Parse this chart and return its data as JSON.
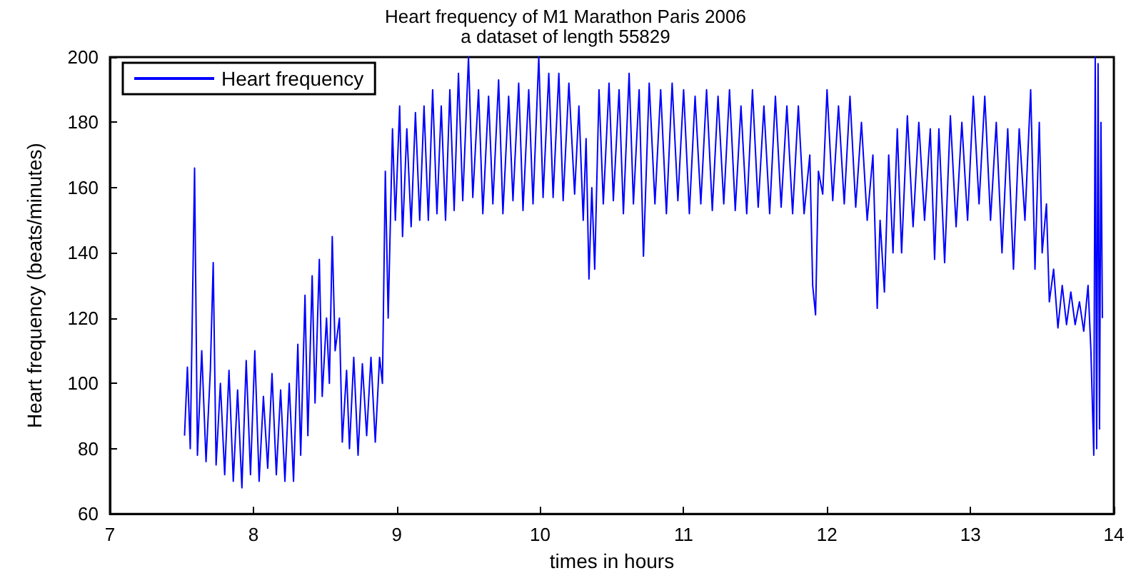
{
  "chart_data": {
    "type": "line",
    "title": "Heart frequency of M1 Marathon Paris 2006",
    "subtitle": "a dataset of length 55829",
    "xlabel": "times in hours",
    "ylabel": "Heart frequency (beats/minutes)",
    "xlim": [
      7,
      14
    ],
    "xticks": [
      7,
      8,
      9,
      10,
      11,
      12,
      13,
      14
    ],
    "ylim": [
      60,
      200
    ],
    "yticks": [
      60,
      80,
      100,
      120,
      140,
      160,
      180,
      200
    ],
    "grid": false,
    "legend": "top left",
    "marker": "none",
    "line_style": "solid",
    "x": [
      7.52,
      7.54,
      7.56,
      7.59,
      7.61,
      7.64,
      7.67,
      7.7,
      7.72,
      7.74,
      7.77,
      7.8,
      7.83,
      7.86,
      7.89,
      7.92,
      7.95,
      7.98,
      8.01,
      8.04,
      8.07,
      8.1,
      8.13,
      8.16,
      8.19,
      8.22,
      8.25,
      8.28,
      8.31,
      8.33,
      8.36,
      8.38,
      8.41,
      8.43,
      8.46,
      8.48,
      8.51,
      8.53,
      8.55,
      8.57,
      8.6,
      8.62,
      8.65,
      8.67,
      8.7,
      8.73,
      8.76,
      8.79,
      8.82,
      8.85,
      8.88,
      8.9,
      8.92,
      8.94,
      8.97,
      8.99,
      9.02,
      9.04,
      9.07,
      9.1,
      9.13,
      9.16,
      9.19,
      9.22,
      9.25,
      9.28,
      9.31,
      9.34,
      9.37,
      9.4,
      9.43,
      9.46,
      9.5,
      9.53,
      9.57,
      9.6,
      9.64,
      9.67,
      9.71,
      9.74,
      9.78,
      9.81,
      9.85,
      9.88,
      9.92,
      9.95,
      9.99,
      10.02,
      10.06,
      10.09,
      10.13,
      10.16,
      10.2,
      10.24,
      10.27,
      10.3,
      10.32,
      10.34,
      10.36,
      10.38,
      10.41,
      10.44,
      10.48,
      10.51,
      10.55,
      10.58,
      10.62,
      10.65,
      10.69,
      10.72,
      10.76,
      10.8,
      10.84,
      10.88,
      10.92,
      10.96,
      11.0,
      11.04,
      11.08,
      11.12,
      11.16,
      11.2,
      11.24,
      11.28,
      11.32,
      11.36,
      11.4,
      11.44,
      11.48,
      11.52,
      11.56,
      11.6,
      11.64,
      11.68,
      11.72,
      11.76,
      11.8,
      11.84,
      11.88,
      11.9,
      11.92,
      11.94,
      11.97,
      12.0,
      12.04,
      12.08,
      12.12,
      12.16,
      12.2,
      12.24,
      12.28,
      12.32,
      12.35,
      12.37,
      12.4,
      12.43,
      12.46,
      12.49,
      12.52,
      12.56,
      12.6,
      12.64,
      12.68,
      12.72,
      12.75,
      12.78,
      12.82,
      12.86,
      12.9,
      12.94,
      12.98,
      13.02,
      13.06,
      13.1,
      13.14,
      13.18,
      13.22,
      13.26,
      13.3,
      13.34,
      13.38,
      13.42,
      13.45,
      13.48,
      13.5,
      13.53,
      13.55,
      13.58,
      13.61,
      13.64,
      13.67,
      13.7,
      13.73,
      13.76,
      13.79,
      13.82,
      13.84,
      13.86,
      13.87,
      13.88,
      13.89,
      13.9,
      13.91,
      13.92
    ],
    "series": [
      {
        "name": "Heart frequency",
        "color": "#0000ff",
        "values": [
          84,
          105,
          80,
          166,
          78,
          110,
          76,
          104,
          137,
          75,
          100,
          72,
          104,
          70,
          98,
          68,
          107,
          72,
          110,
          70,
          96,
          74,
          103,
          72,
          98,
          70,
          100,
          70,
          112,
          78,
          127,
          84,
          133,
          94,
          138,
          96,
          120,
          100,
          145,
          110,
          120,
          82,
          104,
          80,
          108,
          78,
          106,
          84,
          108,
          82,
          108,
          100,
          165,
          120,
          178,
          150,
          185,
          145,
          178,
          148,
          183,
          150,
          185,
          150,
          190,
          152,
          185,
          150,
          190,
          153,
          195,
          156,
          200,
          157,
          190,
          152,
          188,
          155,
          193,
          152,
          188,
          156,
          192,
          153,
          190,
          155,
          200,
          157,
          195,
          157,
          195,
          156,
          192,
          158,
          185,
          150,
          175,
          132,
          160,
          135,
          190,
          155,
          192,
          156,
          190,
          152,
          195,
          155,
          190,
          139,
          192,
          155,
          190,
          152,
          192,
          156,
          190,
          152,
          188,
          155,
          190,
          153,
          188,
          155,
          190,
          153,
          185,
          152,
          190,
          154,
          185,
          152,
          188,
          154,
          185,
          152,
          185,
          152,
          170,
          130,
          121,
          165,
          158,
          190,
          156,
          185,
          155,
          188,
          154,
          180,
          150,
          170,
          123,
          150,
          128,
          170,
          140,
          178,
          140,
          182,
          148,
          180,
          150,
          178,
          138,
          178,
          137,
          182,
          148,
          180,
          150,
          188,
          155,
          188,
          150,
          180,
          140,
          178,
          135,
          178,
          150,
          190,
          135,
          180,
          140,
          155,
          125,
          135,
          117,
          130,
          118,
          128,
          118,
          125,
          116,
          130,
          110,
          78,
          200,
          80,
          198,
          86,
          180,
          120
        ]
      }
    ]
  }
}
